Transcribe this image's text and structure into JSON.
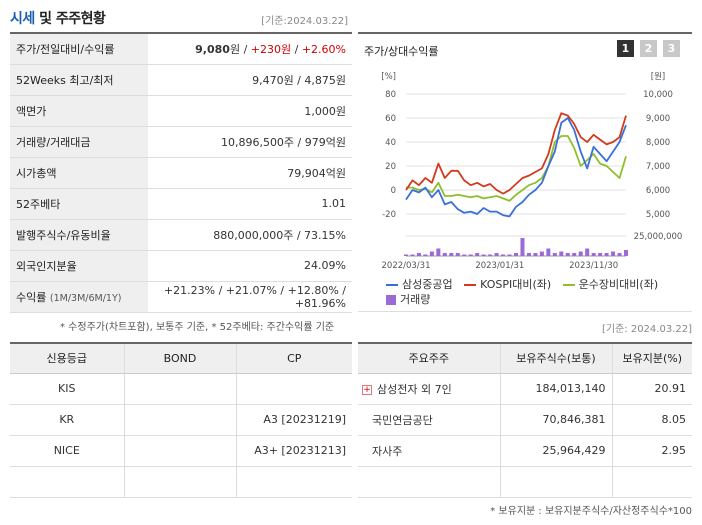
{
  "header": {
    "title_a": "시세",
    "title_b": " 및 주주현황",
    "date_note": "[기준:2024.03.22]"
  },
  "info_rows": [
    {
      "label": "주가/전일대비/수익률",
      "price": "9,080",
      "won": "원",
      "sep1": " / ",
      "change": "+230원",
      "sep2": " / ",
      "pct": "+2.60%"
    },
    {
      "label": "52Weeks 최고/최저",
      "value": "9,470원 / 4,875원"
    },
    {
      "label": "액면가",
      "value": "1,000원"
    },
    {
      "label": "거래량/거래대금",
      "value": "10,896,500주 / 979억원"
    },
    {
      "label": "시가총액",
      "value": "79,904억원"
    },
    {
      "label": "52주베타",
      "value": "1.01"
    },
    {
      "label": "발행주식수/유동비율",
      "value": "880,000,000주 / 73.15%"
    },
    {
      "label": "외국인지분율",
      "value": "24.09%"
    },
    {
      "label": "수익률",
      "label_small": "(1M/3M/6M/1Y)",
      "value": "+21.23% / +21.07% / +12.80% / +81.96%"
    }
  ],
  "left_note": "* 수정주가(차트포함), 보통주 기준, * 52주베타: 주간수익률 기준",
  "chart": {
    "title": "주가/상대수익률",
    "pages": [
      "1",
      "2",
      "3"
    ],
    "left_unit": "[%]",
    "right_unit": "[원]",
    "left_ticks": [
      "80",
      "60",
      "40",
      "20",
      "0",
      "-20"
    ],
    "right_ticks": [
      "10,000",
      "9,000",
      "8,000",
      "7,000",
      "6,000",
      "5,000"
    ],
    "volume_tick": "25,000,000",
    "x_ticks": [
      "2022/03/31",
      "2023/01/31",
      "2023/11/30"
    ],
    "legend": [
      "삼성중공업",
      "KOSPI대비(좌)",
      "운수장비대비(좌)",
      "거래량"
    ],
    "colors": {
      "price": "#3a6fd8",
      "kospi": "#d23a1e",
      "transport": "#8dbf2c",
      "volume": "#9b6ad6"
    }
  },
  "chart_data": {
    "type": "line",
    "x_labels": [
      "2022/03/31",
      "2023/01/31",
      "2023/11/30"
    ],
    "ylim_left": [
      -20,
      80
    ],
    "ylim_right": [
      5000,
      10000
    ],
    "series": [
      {
        "name": "삼성중공업",
        "axis": "right",
        "values": [
          5600,
          6000,
          5900,
          6100,
          5700,
          6000,
          5400,
          5500,
          5200,
          5050,
          5100,
          5000,
          5250,
          5100,
          5100,
          4950,
          4900,
          5300,
          5500,
          5800,
          6000,
          6300,
          7000,
          7600,
          8800,
          9000,
          8500,
          7600,
          6900,
          7800,
          7500,
          7200,
          7600,
          8000,
          8700
        ]
      },
      {
        "name": "KOSPI대비(좌)",
        "axis": "left",
        "values": [
          0,
          8,
          4,
          10,
          6,
          22,
          10,
          16,
          16,
          8,
          4,
          6,
          3,
          5,
          0,
          -3,
          0,
          5,
          10,
          12,
          15,
          18,
          30,
          50,
          64,
          62,
          55,
          44,
          40,
          46,
          42,
          38,
          40,
          44,
          62
        ]
      },
      {
        "name": "운수장비대비(좌)",
        "axis": "left",
        "values": [
          2,
          2,
          0,
          1,
          -2,
          6,
          -5,
          -5,
          -4,
          -5,
          -6,
          -5,
          -7,
          -6,
          -5,
          -7,
          -9,
          -4,
          0,
          4,
          6,
          10,
          20,
          40,
          45,
          45,
          35,
          20,
          25,
          30,
          22,
          20,
          15,
          10,
          28
        ]
      },
      {
        "name": "거래량",
        "axis": "volume",
        "values": [
          1,
          1,
          2,
          1,
          3,
          5,
          2,
          2,
          2,
          1,
          1,
          2,
          1,
          1,
          2,
          1,
          1,
          2,
          12,
          2,
          2,
          3,
          5,
          2,
          3,
          2,
          2,
          3,
          5,
          2,
          2,
          2,
          3,
          2,
          4
        ]
      }
    ]
  },
  "date_note2": "[기준: 2024.03.22]",
  "credit": {
    "headers": [
      "신용등급",
      "BOND",
      "CP"
    ],
    "rows": [
      [
        "KIS",
        "",
        ""
      ],
      [
        "KR",
        "",
        "A3   [20231219]"
      ],
      [
        "NICE",
        "",
        "A3+   [20231213]"
      ],
      [
        "",
        "",
        ""
      ]
    ]
  },
  "holders": {
    "headers": [
      "주요주주",
      "보유주식수(보통)",
      "보유지분(%)"
    ],
    "rows": [
      [
        "삼성전자 외 7인",
        "184,013,140",
        "20.91"
      ],
      [
        "국민연금공단",
        "70,846,381",
        "8.05"
      ],
      [
        "자사주",
        "25,964,429",
        "2.95"
      ],
      [
        "",
        "",
        ""
      ]
    ]
  },
  "right_note": "* 보유지분 : 보유지분주식수/자산정주식수*100"
}
